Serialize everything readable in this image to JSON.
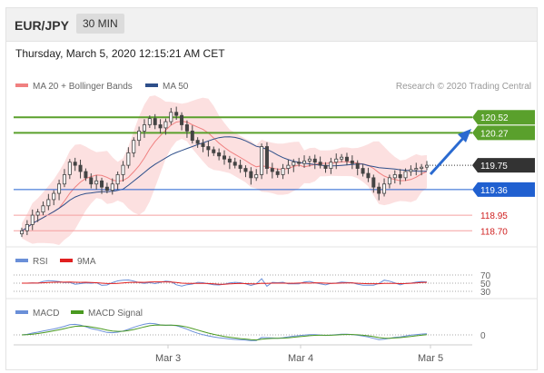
{
  "header": {
    "symbol": "EUR/JPY",
    "timeframe": "30 MIN"
  },
  "date": "Thursday, March 5, 2020 12:15:21 AM CET",
  "credit": "Research © 2020 Trading Central",
  "legend": {
    "ma20": {
      "label": "MA 20 + Bollinger Bands",
      "color": "#f08080"
    },
    "ma50": {
      "label": "MA 50",
      "color": "#2e4f8a"
    }
  },
  "rsi_legend": {
    "rsi": "RSI",
    "ma9": "9MA"
  },
  "macd_legend": {
    "macd": "MACD",
    "signal": "MACD Signal"
  },
  "rsi_levels": [
    "70",
    "50",
    "30"
  ],
  "macd_zero": "0",
  "colors": {
    "resistance": "#5aa02c",
    "support": "#2060d0",
    "support2": "#f5a0a0",
    "up": "#2a6ad0"
  },
  "chart_data": {
    "type": "candlestick",
    "ylim": [
      118.5,
      120.8
    ],
    "x_labels": [
      "Mar 3",
      "Mar 4",
      "Mar 5"
    ],
    "levels": [
      {
        "value": 120.52,
        "label": "120.52",
        "kind": "resistance"
      },
      {
        "value": 120.27,
        "label": "120.27",
        "kind": "resistance"
      },
      {
        "value": 119.75,
        "label": "119.75",
        "kind": "last"
      },
      {
        "value": 119.36,
        "label": "119.36",
        "kind": "pivot"
      },
      {
        "value": 118.95,
        "label": "118.95",
        "kind": "support"
      },
      {
        "value": 118.7,
        "label": "118.70",
        "kind": "support"
      }
    ],
    "close": [
      118.7,
      118.8,
      118.95,
      119.0,
      119.1,
      119.2,
      119.3,
      119.45,
      119.6,
      119.8,
      119.75,
      119.65,
      119.55,
      119.45,
      119.5,
      119.4,
      119.35,
      119.45,
      119.6,
      119.75,
      119.95,
      120.15,
      120.3,
      120.4,
      120.5,
      120.4,
      120.35,
      120.45,
      120.6,
      120.55,
      120.4,
      120.3,
      120.15,
      120.1,
      120.05,
      120.0,
      119.95,
      119.9,
      119.85,
      119.8,
      119.75,
      119.7,
      119.65,
      119.55,
      119.6,
      120.05,
      119.7,
      119.65,
      119.6,
      119.7,
      119.75,
      119.8,
      119.78,
      119.82,
      119.85,
      119.8,
      119.75,
      119.7,
      119.8,
      119.85,
      119.88,
      119.82,
      119.78,
      119.7,
      119.62,
      119.55,
      119.4,
      119.3,
      119.45,
      119.55,
      119.6,
      119.55,
      119.65,
      119.68,
      119.7,
      119.72,
      119.75
    ]
  }
}
